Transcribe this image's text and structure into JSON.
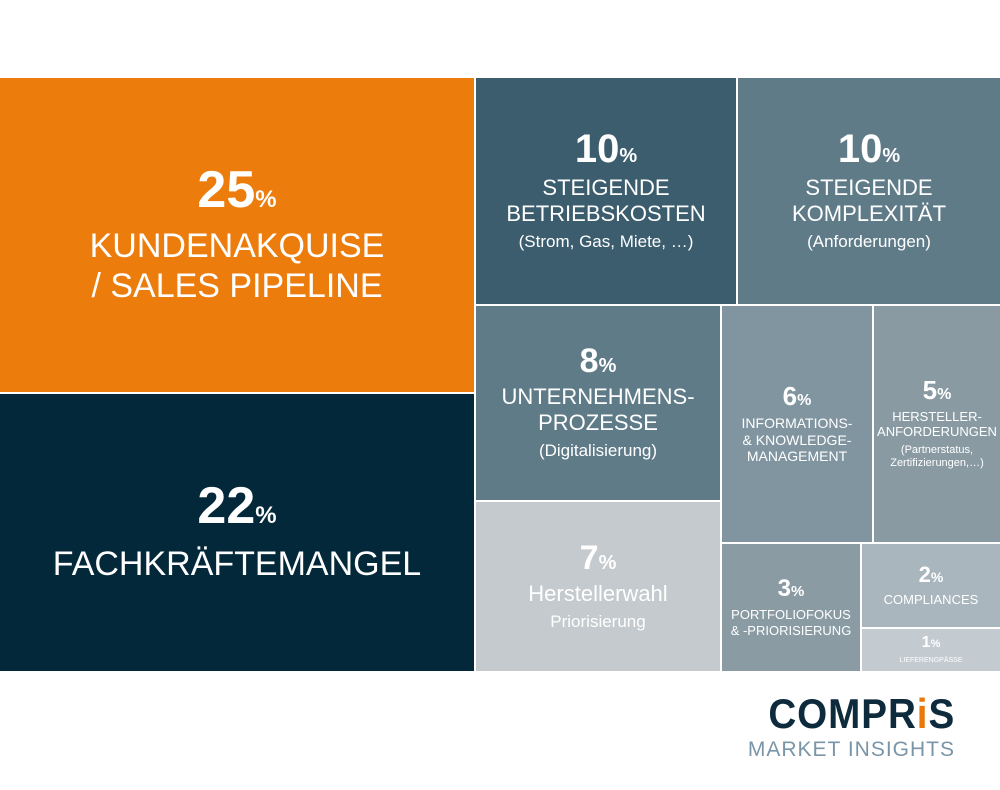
{
  "chart_data": {
    "type": "treemap",
    "tiles": [
      {
        "id": "kundenakquise",
        "value": 25,
        "percent": "25",
        "label": "KUNDENAKQUISE\n/ SALES PIPELINE",
        "sublabel": "",
        "color": "#ec7c0c"
      },
      {
        "id": "fachkraeftemangel",
        "value": 22,
        "percent": "22",
        "label": "FACHKRÄFTEMANGEL",
        "sublabel": "",
        "color": "#03283a"
      },
      {
        "id": "betriebskosten",
        "value": 10,
        "percent": "10",
        "label": "STEIGENDE\nBETRIEBSKOSTEN",
        "sublabel": "(Strom, Gas, Miete, …)",
        "color": "#3b5d6e"
      },
      {
        "id": "komplexitaet",
        "value": 10,
        "percent": "10",
        "label": "STEIGENDE\nKOMPLEXITÄT",
        "sublabel": "(Anforderungen)",
        "color": "#5f7b88"
      },
      {
        "id": "unternehmensprozesse",
        "value": 8,
        "percent": "8",
        "label": "UNTERNEHMENS-\nPROZESSE",
        "sublabel": "(Digitalisierung)",
        "color": "#5f7b88"
      },
      {
        "id": "informationsmanagement",
        "value": 6,
        "percent": "6",
        "label": "INFORMATIONS-\n& KNOWLEDGE-\nMANAGEMENT",
        "sublabel": "",
        "color": "#8095a0"
      },
      {
        "id": "herstelleranforderungen",
        "value": 5,
        "percent": "5",
        "label": "HERSTELLER-\nANFORDERUNGEN",
        "sublabel": "(Partnerstatus,\nZertifizierungen,…)",
        "color": "#899aa3"
      },
      {
        "id": "herstellerwahl",
        "value": 7,
        "percent": "7",
        "label": "Herstellerwahl",
        "sublabel": "Priorisierung",
        "color": "#c4cacd"
      },
      {
        "id": "portfoliofokus",
        "value": 3,
        "percent": "3",
        "label": "PORTFOLIOFOKUS\n& -PRIORISIERUNG",
        "sublabel": "",
        "color": "#8a9ba4"
      },
      {
        "id": "compliances",
        "value": 2,
        "percent": "2",
        "label": "COMPLIANCES",
        "sublabel": "",
        "color": "#a9b6bd"
      },
      {
        "id": "lieferengpaesse",
        "value": 1,
        "percent": "1",
        "label": "LIEFERENGPÄSSE",
        "sublabel": "",
        "color": "#c3cbd0"
      }
    ],
    "percent_sign": "%"
  },
  "logo": {
    "brand_pre": "COMPR",
    "brand_accent": "i",
    "brand_post": "S",
    "tagline": "MARKET INSIGHTS"
  }
}
